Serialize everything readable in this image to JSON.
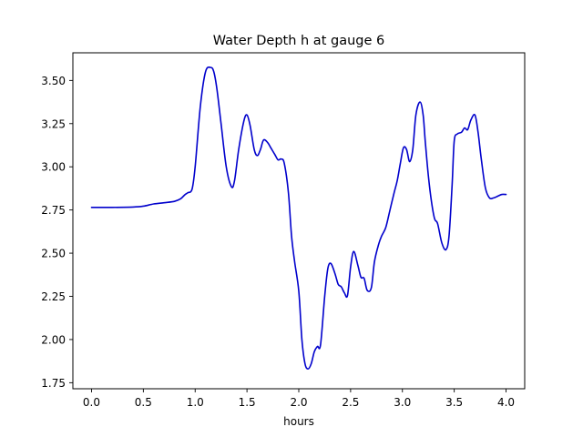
{
  "chart_data": {
    "type": "line",
    "title": "Water Depth h at gauge 6",
    "xlabel": "hours",
    "ylabel": "",
    "xlim": [
      -0.18,
      4.18
    ],
    "ylim": [
      1.715,
      3.66
    ],
    "xticks": [
      0.0,
      0.5,
      1.0,
      1.5,
      2.0,
      2.5,
      3.0,
      3.5,
      4.0
    ],
    "xtick_labels": [
      "0.0",
      "0.5",
      "1.0",
      "1.5",
      "2.0",
      "2.5",
      "3.0",
      "3.5",
      "4.0"
    ],
    "yticks": [
      1.75,
      2.0,
      2.25,
      2.5,
      2.75,
      3.0,
      3.25,
      3.5
    ],
    "ytick_labels": [
      "1.75",
      "2.00",
      "2.25",
      "2.50",
      "2.75",
      "3.00",
      "3.25",
      "3.50"
    ],
    "grid": false,
    "legend": "none",
    "series": [
      {
        "name": "",
        "color": "#0000cc",
        "x": [
          0.0,
          0.2,
          0.4,
          0.5,
          0.6,
          0.7,
          0.8,
          0.86,
          0.9,
          0.93,
          0.97,
          1.0,
          1.05,
          1.1,
          1.15,
          1.18,
          1.21,
          1.25,
          1.3,
          1.35,
          1.38,
          1.42,
          1.47,
          1.5,
          1.53,
          1.57,
          1.6,
          1.63,
          1.66,
          1.7,
          1.73,
          1.77,
          1.8,
          1.83,
          1.86,
          1.9,
          1.93,
          1.96,
          2.0,
          2.03,
          2.06,
          2.09,
          2.12,
          2.15,
          2.18,
          2.21,
          2.25,
          2.28,
          2.31,
          2.35,
          2.38,
          2.41,
          2.44,
          2.47,
          2.5,
          2.53,
          2.57,
          2.6,
          2.63,
          2.66,
          2.7,
          2.73,
          2.77,
          2.8,
          2.84,
          2.88,
          2.92,
          2.95,
          2.98,
          3.01,
          3.04,
          3.07,
          3.1,
          3.13,
          3.17,
          3.2,
          3.22,
          3.25,
          3.28,
          3.31,
          3.34,
          3.38,
          3.42,
          3.45,
          3.48,
          3.5,
          3.53,
          3.57,
          3.6,
          3.63,
          3.66,
          3.7,
          3.73,
          3.76,
          3.8,
          3.84,
          3.88,
          3.92,
          3.96,
          4.0
        ],
        "y": [
          2.765,
          2.765,
          2.767,
          2.772,
          2.785,
          2.792,
          2.8,
          2.815,
          2.838,
          2.85,
          2.87,
          3.0,
          3.35,
          3.55,
          3.575,
          3.55,
          3.45,
          3.25,
          3.0,
          2.885,
          2.92,
          3.1,
          3.265,
          3.3,
          3.24,
          3.1,
          3.065,
          3.1,
          3.155,
          3.14,
          3.11,
          3.07,
          3.04,
          3.045,
          3.02,
          2.85,
          2.6,
          2.45,
          2.28,
          2.0,
          1.86,
          1.83,
          1.86,
          1.93,
          1.96,
          1.97,
          2.25,
          2.41,
          2.44,
          2.38,
          2.32,
          2.305,
          2.27,
          2.255,
          2.42,
          2.51,
          2.43,
          2.36,
          2.355,
          2.285,
          2.3,
          2.45,
          2.55,
          2.6,
          2.65,
          2.75,
          2.85,
          2.92,
          3.02,
          3.11,
          3.1,
          3.03,
          3.1,
          3.3,
          3.375,
          3.3,
          3.15,
          2.95,
          2.8,
          2.7,
          2.67,
          2.56,
          2.52,
          2.6,
          2.9,
          3.15,
          3.19,
          3.2,
          3.225,
          3.215,
          3.27,
          3.3,
          3.2,
          3.05,
          2.88,
          2.82,
          2.82,
          2.83,
          2.84,
          2.84
        ]
      }
    ]
  }
}
